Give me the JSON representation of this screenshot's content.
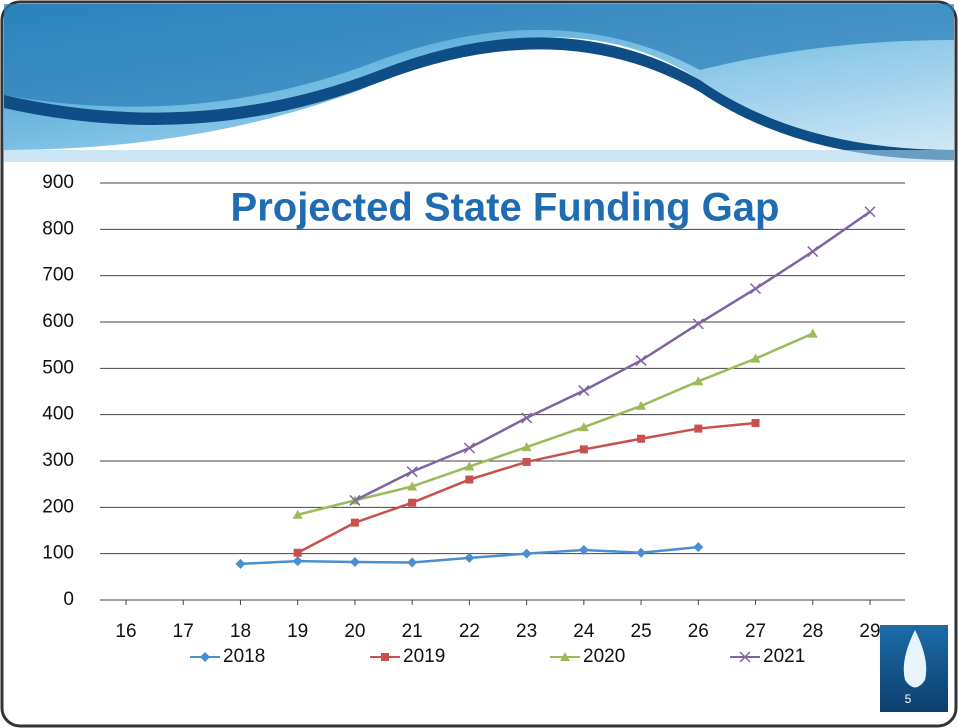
{
  "chart_data": {
    "type": "line",
    "title": "Projected State Funding Gap",
    "page_number": "5",
    "xlim": [
      16,
      29
    ],
    "xticks": [
      16,
      17,
      18,
      19,
      20,
      21,
      22,
      23,
      24,
      25,
      26,
      27,
      28,
      29
    ],
    "ylim": [
      0,
      900
    ],
    "yticks": [
      0,
      100,
      200,
      300,
      400,
      500,
      600,
      700,
      800,
      900
    ],
    "grid": true,
    "legend": "bottom",
    "series": [
      {
        "name": "2018",
        "color": "#4a8fd0",
        "marker": "diamond",
        "x": [
          18,
          19,
          20,
          21,
          22,
          23,
          24,
          25,
          26
        ],
        "values": [
          78,
          84,
          82,
          81,
          91,
          100,
          108,
          102,
          114
        ]
      },
      {
        "name": "2019",
        "color": "#c9504c",
        "marker": "square",
        "x": [
          19,
          20,
          21,
          22,
          23,
          24,
          25,
          26,
          27
        ],
        "values": [
          102,
          167,
          210,
          260,
          298,
          325,
          348,
          370,
          382
        ]
      },
      {
        "name": "2020",
        "color": "#9bbb59",
        "marker": "triangle",
        "x": [
          19,
          20,
          21,
          22,
          23,
          24,
          25,
          26,
          27,
          28
        ],
        "values": [
          184,
          215,
          245,
          288,
          330,
          373,
          419,
          472,
          521,
          575
        ]
      },
      {
        "name": "2021",
        "color": "#8064a2",
        "marker": "x",
        "x": [
          20,
          21,
          22,
          23,
          24,
          25,
          26,
          27,
          28,
          29
        ],
        "values": [
          215,
          277,
          328,
          393,
          452,
          517,
          596,
          672,
          752,
          838
        ]
      }
    ]
  }
}
